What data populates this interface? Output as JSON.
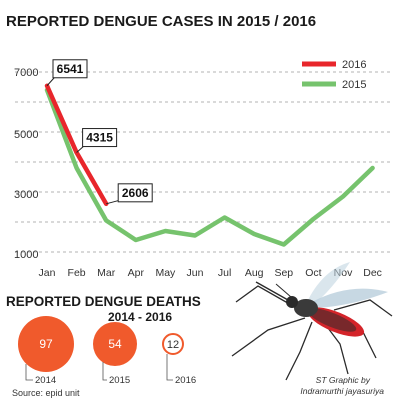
{
  "chart_data": {
    "type": "line",
    "title": "REPORTED DENGUE CASES IN 2015 / 2016",
    "x": [
      "Jan",
      "Feb",
      "Mar",
      "Apr",
      "May",
      "Jun",
      "Jul",
      "Aug",
      "Sep",
      "Oct",
      "Nov",
      "Dec"
    ],
    "y_ticks": [
      "7000",
      "5000",
      "3000",
      "1000"
    ],
    "ylim": [
      1000,
      7000
    ],
    "grid": true,
    "legend_position": "top-right",
    "series": [
      {
        "name": "2016",
        "color": "#e8262b",
        "values": [
          6541,
          4315,
          2606,
          null,
          null,
          null,
          null,
          null,
          null,
          null,
          null,
          null
        ],
        "callouts": [
          "6541",
          "4315",
          "2606"
        ]
      },
      {
        "name": "2015",
        "color": "#76c36d",
        "values": [
          6400,
          3800,
          2050,
          1400,
          1700,
          1550,
          2150,
          1600,
          1250,
          2100,
          2850,
          3800
        ]
      }
    ]
  },
  "deaths": {
    "title_line1": "REPORTED DENGUE DEATHS",
    "title_line2": "2014 - 2016",
    "accent_color": "#f05a2c",
    "items": [
      {
        "year": "2014",
        "value": 97
      },
      {
        "year": "2015",
        "value": 54
      },
      {
        "year": "2016",
        "value": 12
      }
    ]
  },
  "source": "Source: epid unit",
  "credit_line1": "ST Graphic by",
  "credit_line2": "Indramurthi jayasuriya"
}
